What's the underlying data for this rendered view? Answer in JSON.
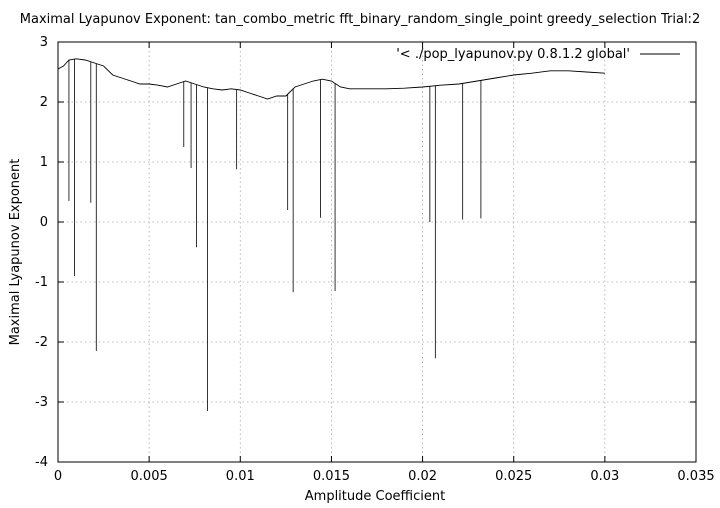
{
  "chart_data": {
    "type": "line",
    "title": "Maximal Lyapunov Exponent: tan_combo_metric fft_binary_random_single_point greedy_selection Trial:2",
    "xlabel": "Amplitude Coefficient",
    "ylabel": "Maximal Lyapunov Exponent",
    "xlim": [
      0,
      0.035
    ],
    "ylim": [
      -4,
      3
    ],
    "xticks": [
      "0",
      "0.005",
      "0.01",
      "0.015",
      "0.02",
      "0.025",
      "0.03",
      "0.035"
    ],
    "yticks": [
      "3",
      "2",
      "1",
      "0",
      "-1",
      "-2",
      "-3",
      "-4"
    ],
    "xtick_values": [
      0,
      0.005,
      0.01,
      0.015,
      0.02,
      0.025,
      0.03,
      0.035
    ],
    "ytick_values": [
      3,
      2,
      1,
      0,
      -1,
      -2,
      -3,
      -4
    ],
    "grid": true,
    "legend_position": "top-right",
    "series": [
      {
        "name": "'< ./pop_lyapunov.py 0.8.1.2 global'",
        "color": "#000000",
        "x": [
          0,
          0.0003,
          0.0006,
          0.001,
          0.0015,
          0.002,
          0.0025,
          0.003,
          0.0035,
          0.004,
          0.0045,
          0.005,
          0.0055,
          0.006,
          0.0065,
          0.007,
          0.0075,
          0.008,
          0.0085,
          0.009,
          0.0095,
          0.01,
          0.0105,
          0.011,
          0.0115,
          0.012,
          0.0125,
          0.013,
          0.0135,
          0.014,
          0.0145,
          0.015,
          0.0155,
          0.016,
          0.017,
          0.018,
          0.019,
          0.02,
          0.021,
          0.022,
          0.023,
          0.024,
          0.025,
          0.026,
          0.027,
          0.028,
          0.029,
          0.03
        ],
        "y": [
          2.55,
          2.6,
          2.7,
          2.72,
          2.7,
          2.65,
          2.6,
          2.45,
          2.4,
          2.35,
          2.3,
          2.3,
          2.28,
          2.25,
          2.3,
          2.35,
          2.3,
          2.25,
          2.22,
          2.2,
          2.22,
          2.2,
          2.15,
          2.1,
          2.05,
          2.1,
          2.1,
          2.25,
          2.3,
          2.35,
          2.38,
          2.35,
          2.25,
          2.22,
          2.22,
          2.22,
          2.23,
          2.25,
          2.28,
          2.3,
          2.35,
          2.4,
          2.45,
          2.48,
          2.52,
          2.52,
          2.5,
          2.48
        ]
      }
    ],
    "spikes": [
      {
        "x": 0.0006,
        "y": 0.35
      },
      {
        "x": 0.0009,
        "y": -0.9
      },
      {
        "x": 0.0018,
        "y": 0.32
      },
      {
        "x": 0.0021,
        "y": -2.15
      },
      {
        "x": 0.0069,
        "y": 1.25
      },
      {
        "x": 0.0073,
        "y": 0.9
      },
      {
        "x": 0.0076,
        "y": -0.42
      },
      {
        "x": 0.0082,
        "y": -3.15
      },
      {
        "x": 0.0098,
        "y": 0.88
      },
      {
        "x": 0.0126,
        "y": 0.2
      },
      {
        "x": 0.0129,
        "y": -1.17
      },
      {
        "x": 0.0144,
        "y": 0.07
      },
      {
        "x": 0.0152,
        "y": -1.15
      },
      {
        "x": 0.0204,
        "y": 0.0
      },
      {
        "x": 0.0207,
        "y": -2.27
      },
      {
        "x": 0.0222,
        "y": 0.04
      },
      {
        "x": 0.0232,
        "y": 0.06
      }
    ]
  }
}
